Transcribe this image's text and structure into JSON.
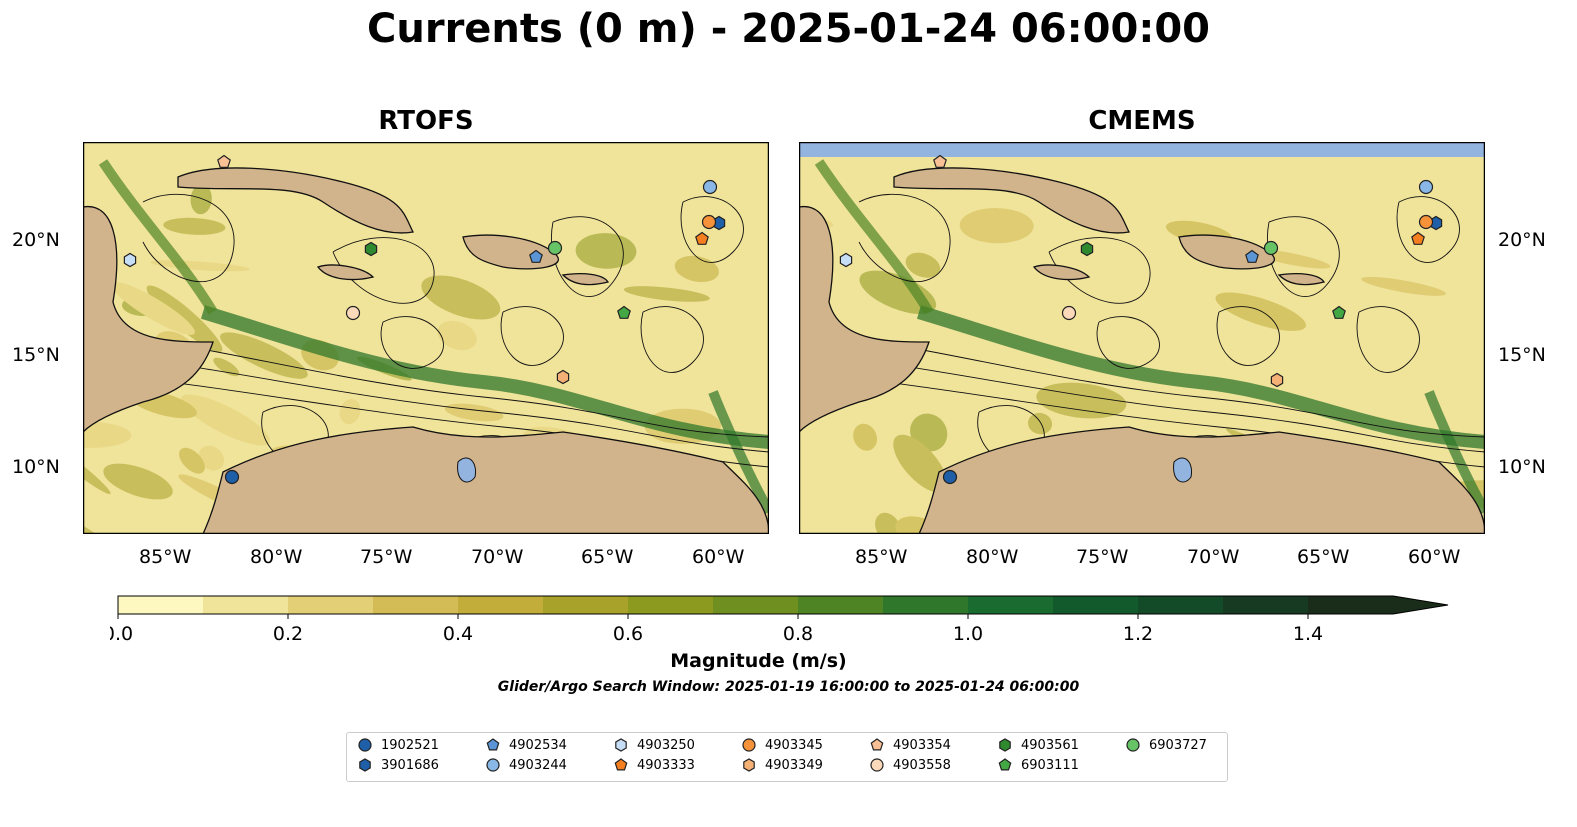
{
  "title": "Currents (0 m) - 2025-01-24 06:00:00",
  "panels": [
    {
      "title": "RTOFS"
    },
    {
      "title": "CMEMS"
    }
  ],
  "axes": {
    "xticks": [
      "85°W",
      "80°W",
      "75°W",
      "70°W",
      "65°W",
      "60°W"
    ],
    "yticks": [
      "20°N",
      "15°N",
      "10°N"
    ]
  },
  "colorbar": {
    "label": "Magnitude (m/s)",
    "ticks": [
      "0.0",
      "0.2",
      "0.4",
      "0.6",
      "0.8",
      "1.0",
      "1.2",
      "1.4"
    ],
    "range": [
      0,
      1.5
    ],
    "colors": [
      "#fdf7c0",
      "#f0e39a",
      "#e3cf76",
      "#d3bc55",
      "#c2ad3a",
      "#a8a22a",
      "#8c9a20",
      "#6f9020",
      "#4f8425",
      "#2f772b",
      "#1a6b30",
      "#125a2c",
      "#134a27",
      "#163a22",
      "#1a2c1a"
    ]
  },
  "search_window": "Glider/Argo Search Window: 2025-01-19 16:00:00 to 2025-01-24 06:00:00",
  "legend": [
    {
      "id": "1902521",
      "marker": "circle",
      "color": "#1f5fa8"
    },
    {
      "id": "3901686",
      "marker": "hexagon",
      "color": "#1f5fa8"
    },
    {
      "id": "4902534",
      "marker": "pentagon",
      "color": "#5b95d6"
    },
    {
      "id": "4903244",
      "marker": "circle",
      "color": "#8ab8e6"
    },
    {
      "id": "4903250",
      "marker": "hexagon",
      "color": "#c6def5"
    },
    {
      "id": "4903333",
      "marker": "pentagon",
      "color": "#f57f1f"
    },
    {
      "id": "4903345",
      "marker": "circle",
      "color": "#f5923a"
    },
    {
      "id": "4903349",
      "marker": "hexagon",
      "color": "#f5b075"
    },
    {
      "id": "4903354",
      "marker": "pentagon",
      "color": "#f8c094"
    },
    {
      "id": "4903558",
      "marker": "circle",
      "color": "#fbd9bb"
    },
    {
      "id": "4903561",
      "marker": "hexagon",
      "color": "#2f8a2f"
    },
    {
      "id": "6903111",
      "marker": "pentagon",
      "color": "#43a843"
    },
    {
      "id": "6903727",
      "marker": "circle",
      "color": "#66c466"
    }
  ]
}
